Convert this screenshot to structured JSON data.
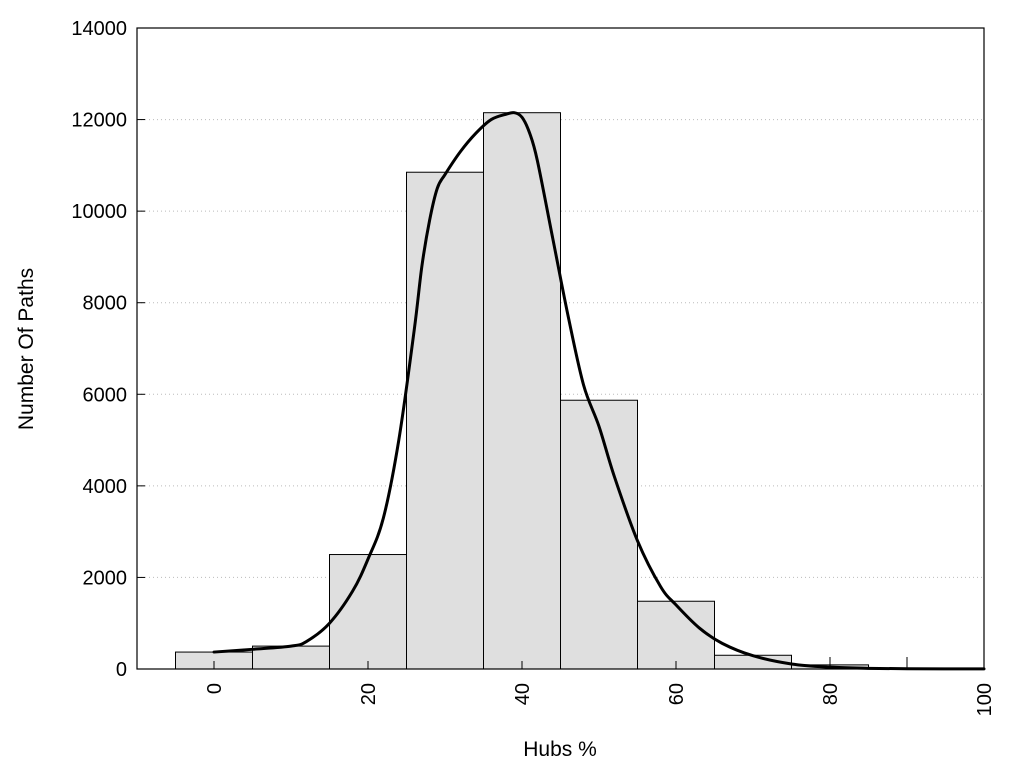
{
  "chart_data": {
    "type": "bar",
    "title": "",
    "xlabel": "Hubs %",
    "ylabel": "Number Of Paths",
    "xlim": [
      -10,
      100
    ],
    "ylim": [
      0,
      14000
    ],
    "x_ticks": [
      0,
      20,
      40,
      60,
      80,
      100
    ],
    "x_tick_labels": [
      "0",
      "20",
      "40",
      "60",
      "80",
      "100"
    ],
    "y_ticks": [
      0,
      2000,
      4000,
      6000,
      8000,
      10000,
      12000,
      14000
    ],
    "y_tick_labels": [
      "0",
      "2000",
      "4000",
      "6000",
      "8000",
      "10000",
      "12000",
      "14000"
    ],
    "grid": "horizontal dotted",
    "bar_width": 10,
    "bars": [
      {
        "x": 0,
        "value": 370
      },
      {
        "x": 10,
        "value": 500
      },
      {
        "x": 20,
        "value": 2500
      },
      {
        "x": 30,
        "value": 10850
      },
      {
        "x": 40,
        "value": 12150
      },
      {
        "x": 50,
        "value": 5870
      },
      {
        "x": 60,
        "value": 1480
      },
      {
        "x": 70,
        "value": 300
      },
      {
        "x": 80,
        "value": 90
      },
      {
        "x": 90,
        "value": 20
      },
      {
        "x": 100,
        "value": 5
      }
    ],
    "curve": {
      "type": "line",
      "x": [
        0,
        5,
        10,
        12,
        15,
        18,
        20,
        22,
        24,
        26,
        27,
        28,
        29,
        30,
        32,
        34,
        36,
        38,
        39,
        40,
        41,
        42,
        44,
        46,
        48,
        50,
        52,
        55,
        58,
        60,
        63,
        66,
        70,
        75,
        80,
        85,
        90,
        95,
        100
      ],
      "y": [
        370,
        430,
        500,
        600,
        1000,
        1700,
        2400,
        3300,
        5000,
        7400,
        8800,
        9800,
        10500,
        10800,
        11300,
        11700,
        12000,
        12120,
        12150,
        12050,
        11700,
        11100,
        9400,
        7700,
        6200,
        5300,
        4200,
        2800,
        1800,
        1400,
        900,
        560,
        290,
        110,
        40,
        15,
        5,
        3,
        2
      ]
    },
    "colors": {
      "bar_fill": "#dfdfdf",
      "bar_stroke": "#000000",
      "curve": "#000000",
      "grid": "#bbbbbb"
    }
  }
}
